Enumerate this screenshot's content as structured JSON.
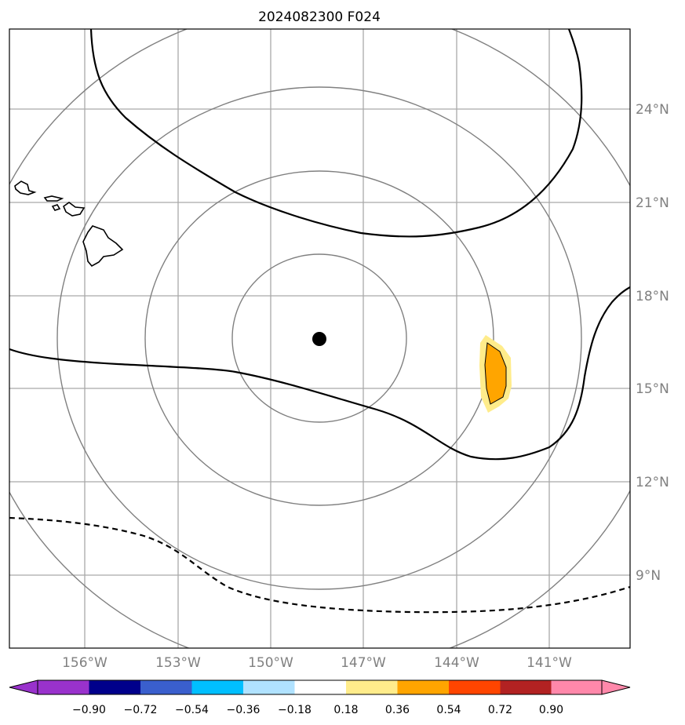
{
  "title": "2024082300 F024",
  "map": {
    "lon_labels": [
      "156°W",
      "153°W",
      "150°W",
      "147°W",
      "144°W",
      "141°W"
    ],
    "lat_labels": [
      "24°N",
      "21°N",
      "18°N",
      "15°N",
      "12°N",
      "9°N"
    ],
    "storm_center": {
      "lon": -148.5,
      "lat": 16.6
    },
    "gridline_color": "#a9a9a9",
    "range_ring_color": "#808080",
    "contour_color": "#000000"
  },
  "colorbar": {
    "ticks": [
      "−0.90",
      "−0.72",
      "−0.54",
      "−0.36",
      "−0.18",
      "0.18",
      "0.36",
      "0.54",
      "0.72",
      "0.90"
    ],
    "colors": [
      "#9932cc",
      "#00008b",
      "#3a5fcd",
      "#00bfff",
      "#b0e2ff",
      "#ffffff",
      "#ffec8b",
      "#ffa500",
      "#ff4500",
      "#b22222",
      "#ff88aa"
    ]
  }
}
